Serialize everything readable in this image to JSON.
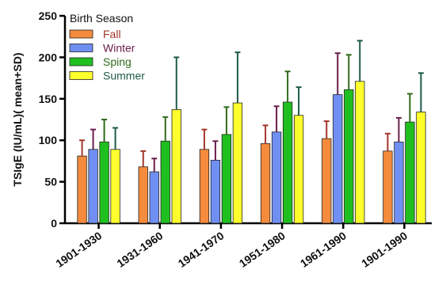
{
  "chart_data": {
    "type": "bar",
    "title": "",
    "xlabel": "",
    "ylabel": "TSIgE (IU/mL)( mean+SD)",
    "ylim": [
      0,
      250
    ],
    "yticks": [
      0,
      50,
      100,
      150,
      200,
      250
    ],
    "grid": false,
    "legend_title": "Birth Season",
    "legend_position": "top-left",
    "categories": [
      "1901-1930",
      "1931-1960",
      "1941-1970",
      "1951-1980",
      "1961-1990",
      "1901-1990"
    ],
    "series": [
      {
        "name": "Fall",
        "color": "#f58b3c",
        "errorColor": "#a3362a",
        "textColor": "#a3362a",
        "values": [
          81,
          68,
          89,
          96,
          102,
          87
        ],
        "sd": [
          19,
          19,
          24,
          22,
          21,
          21
        ]
      },
      {
        "name": "Winter",
        "color": "#6f8ff2",
        "errorColor": "#6a1e4a",
        "textColor": "#6a1e4a",
        "values": [
          89,
          62,
          76,
          110,
          155,
          98
        ],
        "sd": [
          24,
          16,
          23,
          31,
          50,
          29
        ]
      },
      {
        "name": "Sping",
        "color": "#1fbf1f",
        "errorColor": "#2f6b1a",
        "textColor": "#2f6b1a",
        "values": [
          98,
          99,
          107,
          146,
          161,
          122
        ],
        "sd": [
          27,
          29,
          33,
          37,
          42,
          34
        ]
      },
      {
        "name": "Summer",
        "color": "#ffff2e",
        "errorColor": "#1f5a4a",
        "textColor": "#1f5a4a",
        "values": [
          89,
          137,
          145,
          130,
          171,
          134
        ],
        "sd": [
          26,
          63,
          61,
          34,
          49,
          47
        ]
      }
    ]
  }
}
